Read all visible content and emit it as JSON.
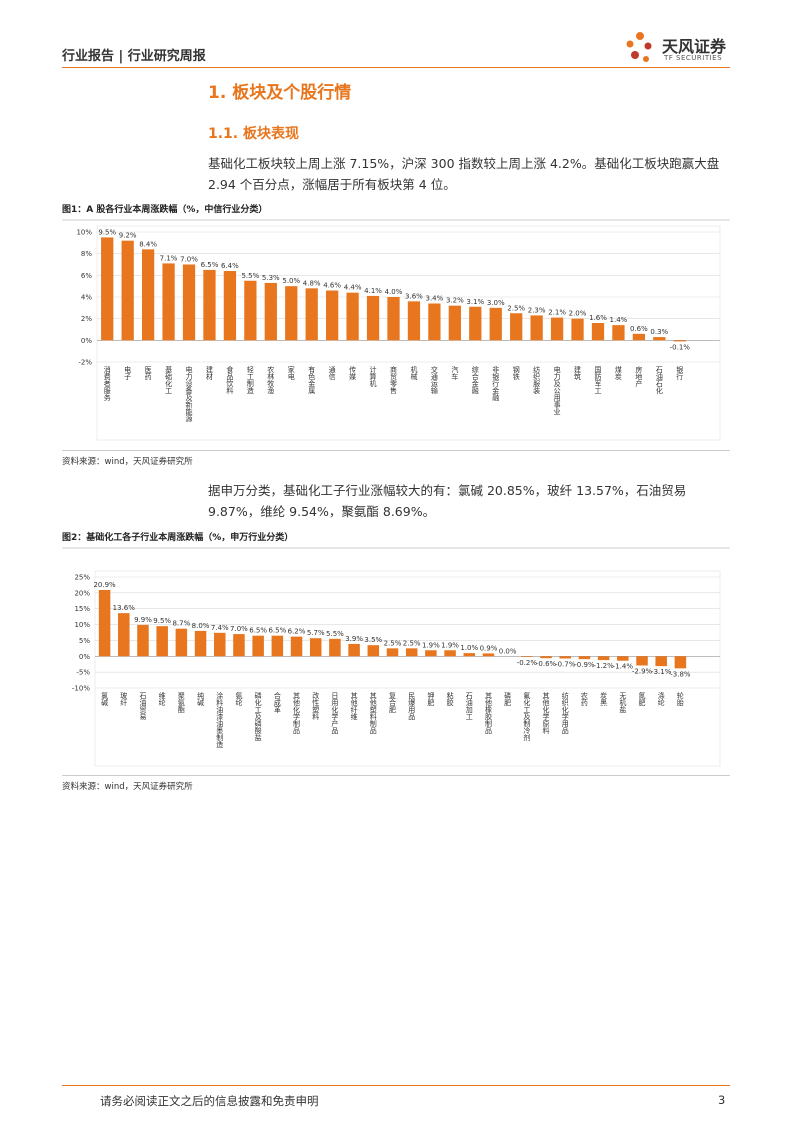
{
  "header": {
    "left": "行业报告 | 行业研究周报",
    "logo_cn": "天风证券",
    "logo_en": "TF SECURITIES"
  },
  "section": {
    "heading": "1. 板块及个股行情",
    "subheading": "1.1. 板块表现"
  },
  "paragraphs": [
    "基础化工板块较上周上涨 7.15%，沪深 300 指数较上周上涨 4.2%。基础化工板块跑赢大盘 2.94 个百分点，涨幅居于所有板块第 4 位。",
    "据申万分类，基础化工子行业涨幅较大的有：氯碱 20.85%，玻纤 13.57%，石油贸易 9.87%，维纶 9.54%，聚氨酯 8.69%。"
  ],
  "figures": [
    {
      "title": "图1：A 股各行业本周涨跌幅（%，中信行业分类）",
      "source": "资料来源：wind，天风证券研究所",
      "chart_data": {
        "type": "bar",
        "color": "#e8761e",
        "grid": true,
        "categories": [
          "消费者服务",
          "电子",
          "医药",
          "基础化工",
          "电力设备及新能源",
          "建材",
          "食品饮料",
          "轻工制造",
          "农林牧渔",
          "家电",
          "有色金属",
          "通信",
          "传媒",
          "计算机",
          "商贸零售",
          "机械",
          "交通运输",
          "汽车",
          "综合金融",
          "非银行金融",
          "钢铁",
          "纺织服装",
          "电力及公用事业",
          "建筑",
          "国防军工",
          "煤炭",
          "房地产",
          "石油石化",
          "银行"
        ],
        "values": [
          9.5,
          9.2,
          8.4,
          7.1,
          7.0,
          6.5,
          6.4,
          5.5,
          5.3,
          5.0,
          4.8,
          4.6,
          4.4,
          4.1,
          4.0,
          3.6,
          3.4,
          3.2,
          3.1,
          3.0,
          2.5,
          2.3,
          2.1,
          2.0,
          1.6,
          1.4,
          0.6,
          0.3,
          -0.1
        ],
        "value_labels": [
          "9.5%",
          "9.2%",
          "8.4%",
          "7.1%",
          "7.0%",
          "6.5%",
          "6.4%",
          "5.5%",
          "5.3%",
          "5.0%",
          "4.8%",
          "4.6%",
          "4.4%",
          "4.1%",
          "4.0%",
          "3.6%",
          "3.4%",
          "3.2%",
          "3.1%",
          "3.0%",
          "2.5%",
          "2.3%",
          "2.1%",
          "2.0%",
          "1.6%",
          "1.4%",
          "0.6%",
          "0.3%",
          "-0.1%"
        ],
        "ylim": [
          -2,
          10
        ],
        "yticks": [
          {
            "value": -2,
            "label": "-2%"
          },
          {
            "value": 0,
            "label": "0%"
          },
          {
            "value": 2,
            "label": "2%"
          },
          {
            "value": 4,
            "label": "4%"
          },
          {
            "value": 6,
            "label": "6%"
          },
          {
            "value": 8,
            "label": "8%"
          },
          {
            "value": 10,
            "label": "10%"
          }
        ]
      }
    },
    {
      "title": "图2：基础化工各子行业本周涨跌幅（%，申万行业分类）",
      "source": "资料来源：wind，天风证券研究所",
      "chart_data": {
        "type": "bar",
        "color": "#e8761e",
        "grid": true,
        "categories": [
          "氯碱",
          "玻纤",
          "石油贸易",
          "维纶",
          "聚氨酯",
          "纯碱",
          "涂料油漆油墨制造",
          "氨纶",
          "磷化工及磷酸盐",
          "合成革",
          "其他化学制品",
          "改性塑料",
          "日用化学产品",
          "其他纤维",
          "其他塑料制品",
          "复合肥",
          "民爆用品",
          "钾肥",
          "粘胶",
          "石油加工",
          "其他橡胶制品",
          "磷肥",
          "氟化工及制冷剂",
          "其他化学原料",
          "纺织化学用品",
          "农药",
          "炭黑",
          "无机盐",
          "氮肥",
          "涤纶",
          "轮胎"
        ],
        "values": [
          20.9,
          13.6,
          9.9,
          9.5,
          8.7,
          8.0,
          7.4,
          7.0,
          6.5,
          6.5,
          6.2,
          5.7,
          5.5,
          3.9,
          3.5,
          2.5,
          2.5,
          1.9,
          1.9,
          1.0,
          0.9,
          0.0,
          -0.2,
          -0.6,
          -0.7,
          -0.9,
          -1.2,
          -1.4,
          -2.9,
          -3.1,
          -3.8
        ],
        "value_labels": [
          "20.9%",
          "13.6%",
          "9.9%",
          "9.5%",
          "8.7%",
          "8.0%",
          "7.4%",
          "7.0%",
          "6.5%",
          "6.5%",
          "6.2%",
          "5.7%",
          "5.5%",
          "3.9%",
          "3.5%",
          "2.5%",
          "2.5%",
          "1.9%",
          "1.9%",
          "1.0%",
          "0.9%",
          "0.0%",
          "-0.2%",
          "-0.6%",
          "-0.7%",
          "-0.9%",
          "-1.2%",
          "-1.4%",
          "-2.9%",
          "-3.1%",
          "-3.8%"
        ],
        "ylim": [
          -10,
          25
        ],
        "yticks": [
          {
            "value": -10,
            "label": "-10%"
          },
          {
            "value": -5,
            "label": "-5%"
          },
          {
            "value": 0,
            "label": "0%"
          },
          {
            "value": 5,
            "label": "5%"
          },
          {
            "value": 10,
            "label": "10%"
          },
          {
            "value": 15,
            "label": "15%"
          },
          {
            "value": 20,
            "label": "20%"
          },
          {
            "value": 25,
            "label": "25%"
          }
        ]
      }
    }
  ],
  "footer": {
    "disclaimer": "请务必阅读正文之后的信息披露和免责申明",
    "page": "3"
  }
}
